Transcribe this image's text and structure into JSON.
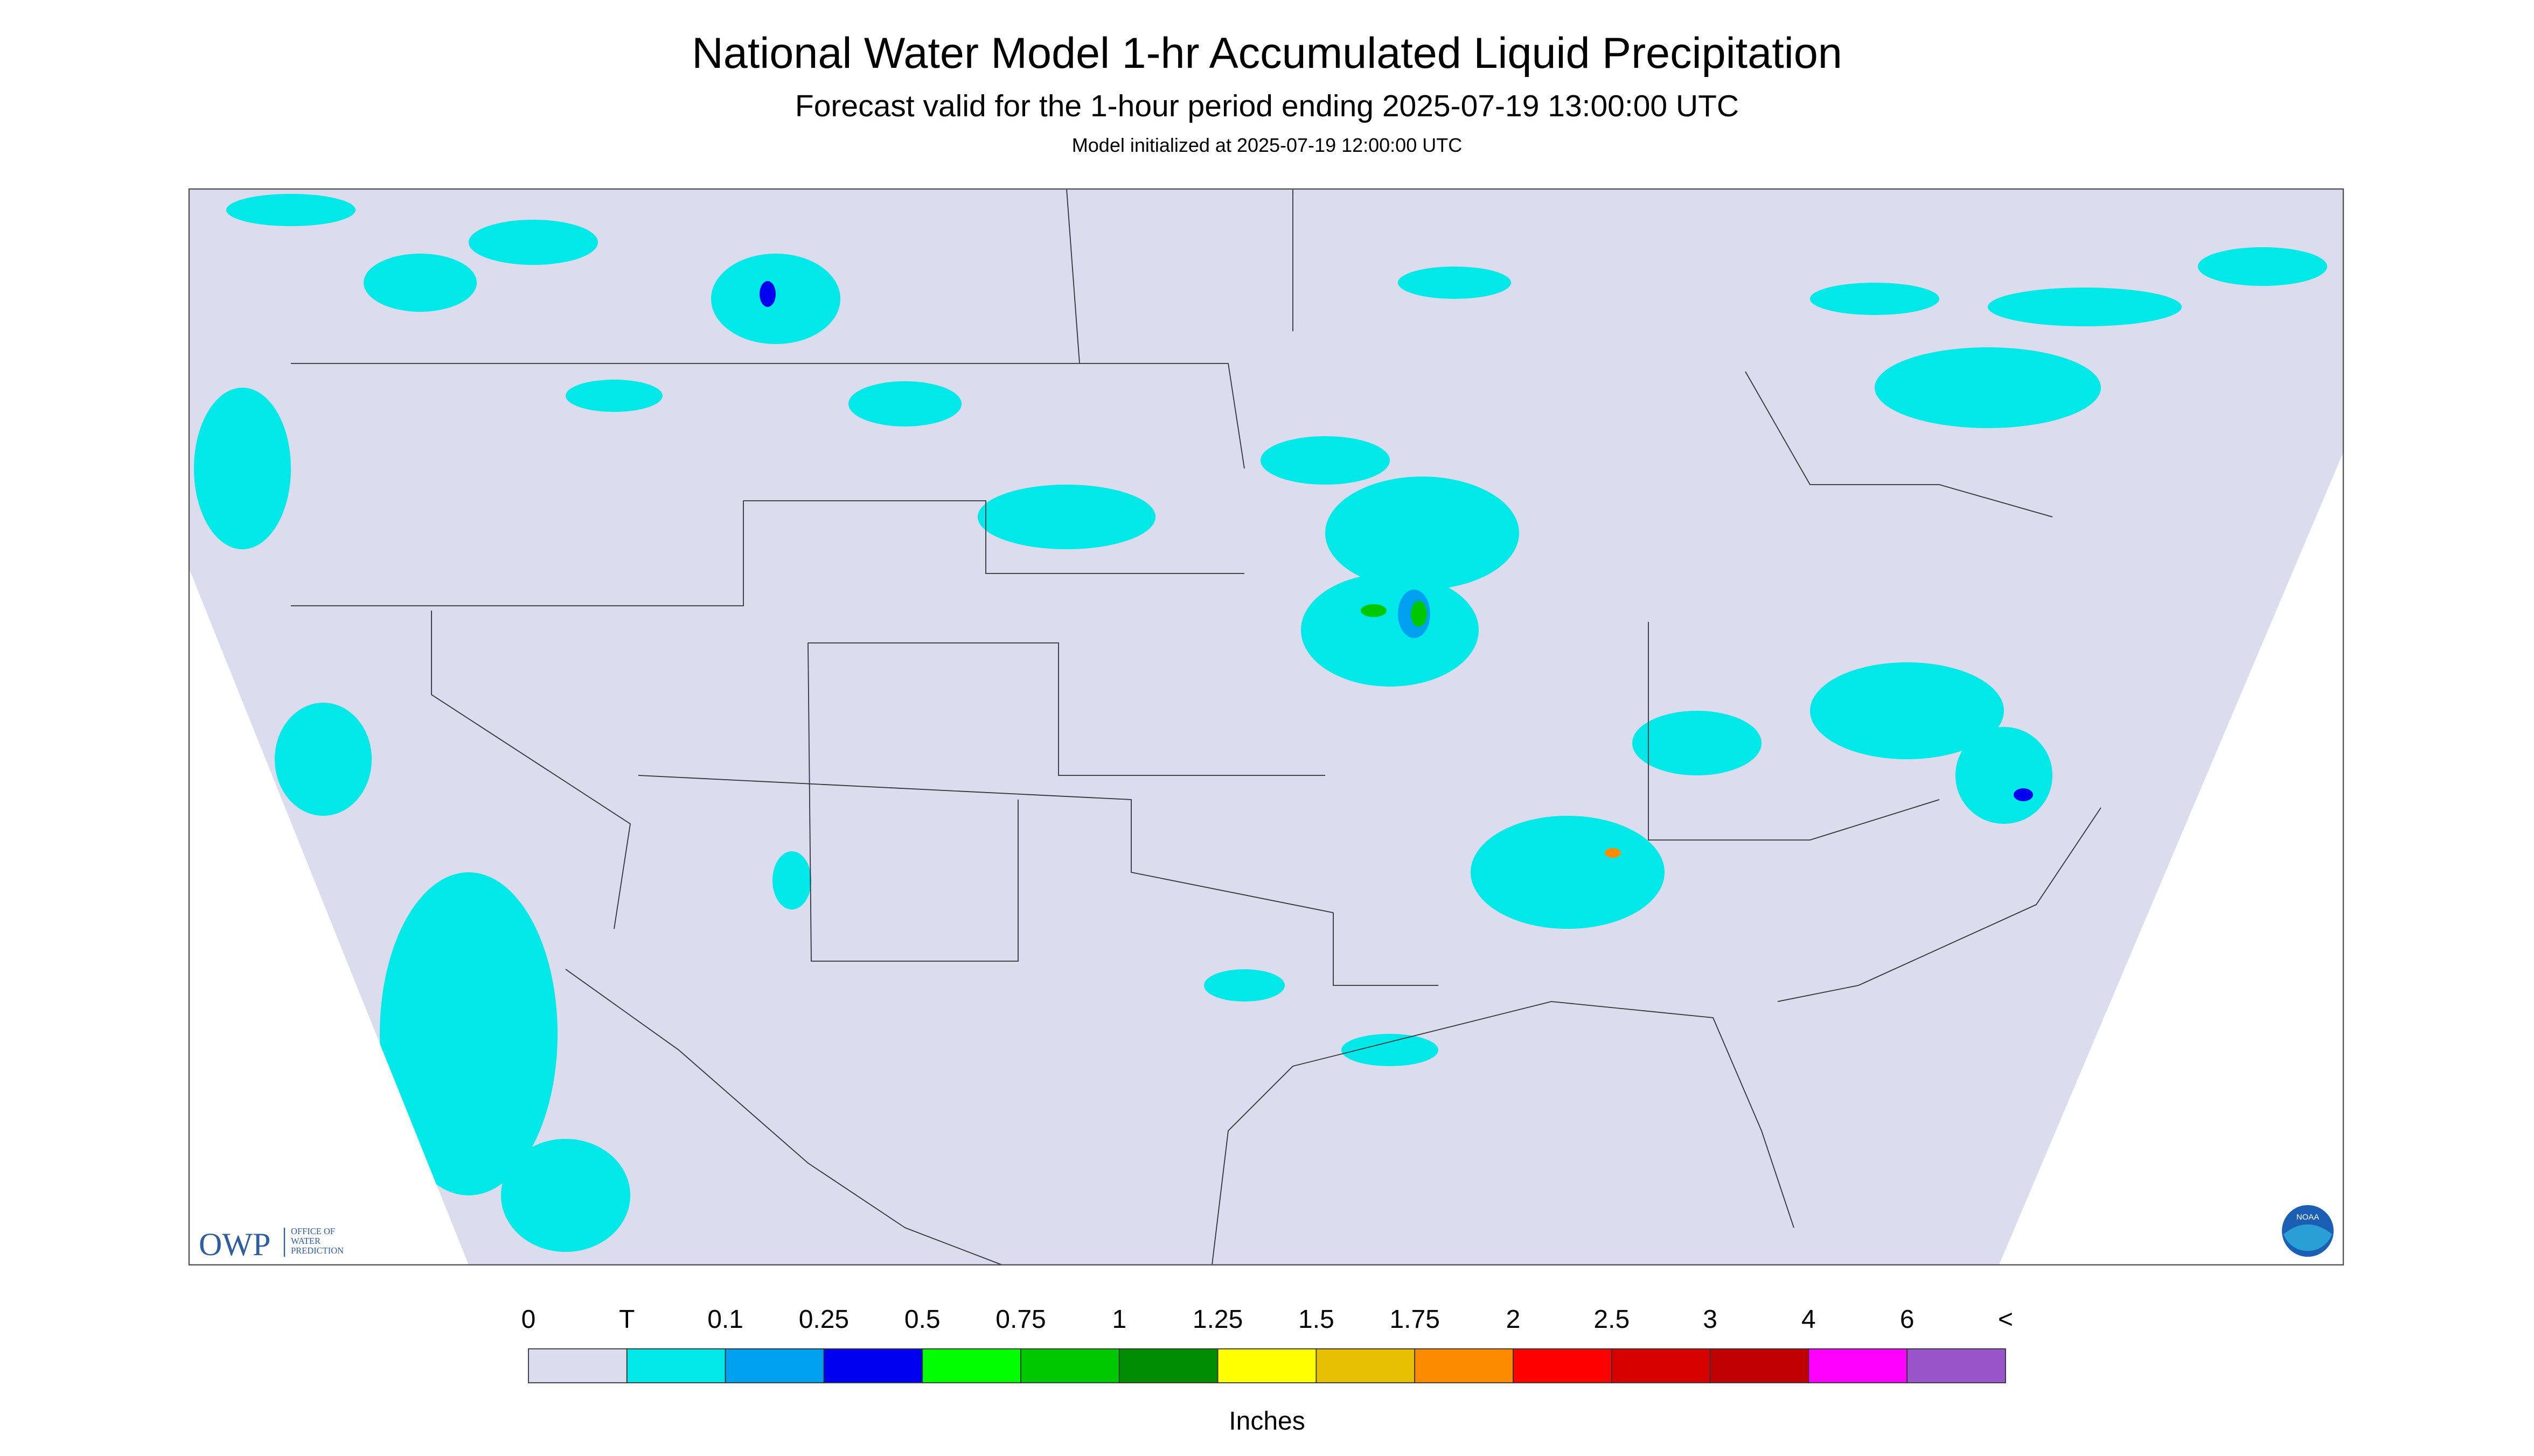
{
  "header": {
    "title": "National Water Model 1-hr Accumulated Liquid Precipitation",
    "subtitle": "Forecast valid for the 1-hour period ending 2025-07-19 13:00:00 UTC",
    "note": "Model initialized at 2025-07-19 12:00:00 UTC"
  },
  "logo": {
    "acronym": "OWP",
    "lines": [
      "OFFICE OF",
      "WATER",
      "PREDICTION"
    ],
    "agency": "NOAA"
  },
  "legend": {
    "labels": [
      "0",
      "T",
      "0.1",
      "0.25",
      "0.5",
      "0.75",
      "1",
      "1.25",
      "1.5",
      "1.75",
      "2",
      "2.5",
      "3",
      "4",
      "6",
      "<"
    ],
    "colors": [
      "#dcdcef",
      "#00e8e8",
      "#00a0f0",
      "#0000f0",
      "#00ff00",
      "#00c800",
      "#008c00",
      "#ffff00",
      "#e6c000",
      "#ff8c00",
      "#ff0000",
      "#d60000",
      "#c00000",
      "#ff00ff",
      "#9955c9"
    ],
    "unit": "Inches"
  }
}
